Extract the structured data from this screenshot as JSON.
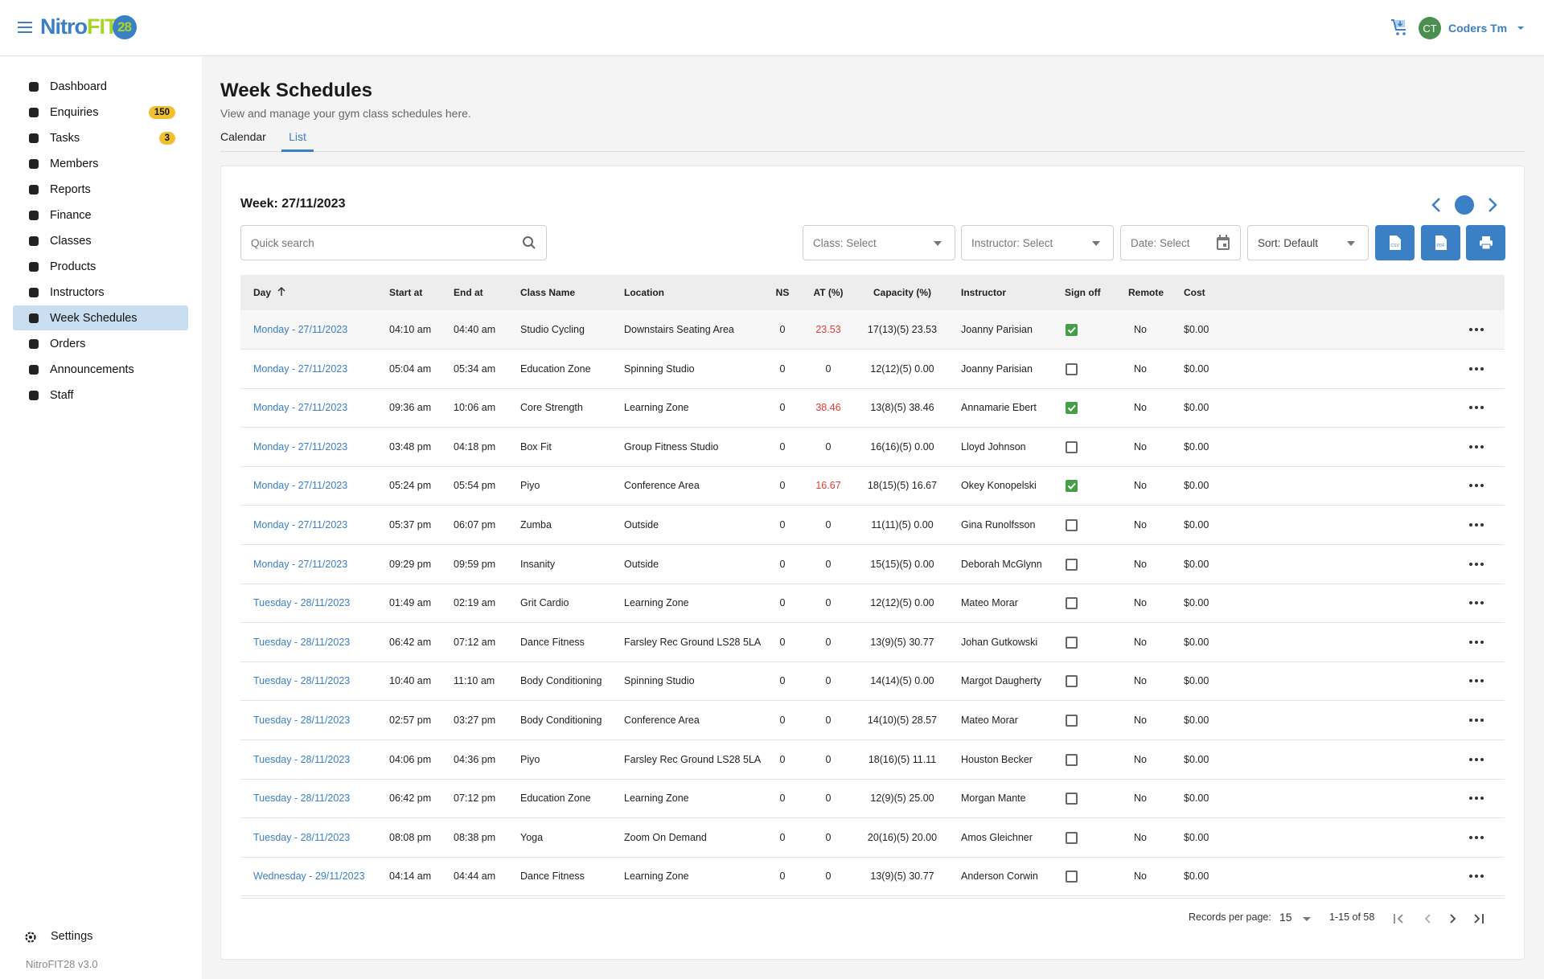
{
  "brand": {
    "logo_text_a": "Nitro",
    "logo_text_b": "FIT",
    "logo_text_c": "28",
    "accent": "#3b7fc4",
    "lime": "#a8d52a"
  },
  "user": {
    "initials": "CT",
    "name": "Coders Tm",
    "avatar_color": "#4a8f4f"
  },
  "sidebar": {
    "items": [
      {
        "label": "Dashboard",
        "icon": "dashboard-icon"
      },
      {
        "label": "Enquiries",
        "icon": "enquiries-icon",
        "badge": "150"
      },
      {
        "label": "Tasks",
        "icon": "tasks-icon",
        "badge": "3"
      },
      {
        "label": "Members",
        "icon": "members-icon"
      },
      {
        "label": "Reports",
        "icon": "reports-icon"
      },
      {
        "label": "Finance",
        "icon": "finance-icon"
      },
      {
        "label": "Classes",
        "icon": "classes-icon"
      },
      {
        "label": "Products",
        "icon": "products-icon"
      },
      {
        "label": "Instructors",
        "icon": "instructors-icon"
      },
      {
        "label": "Week Schedules",
        "icon": "calendar-icon",
        "active": true
      },
      {
        "label": "Orders",
        "icon": "cart-icon"
      },
      {
        "label": "Announcements",
        "icon": "megaphone-icon"
      },
      {
        "label": "Staff",
        "icon": "staff-icon"
      }
    ],
    "settings": "Settings",
    "version": "NitroFIT28 v3.0"
  },
  "page": {
    "title": "Week Schedules",
    "subtitle": "View and manage your gym class schedules here.",
    "tabs": [
      {
        "label": "Calendar"
      },
      {
        "label": "List",
        "active": true
      }
    ]
  },
  "toolbar": {
    "week": "Week: 27/11/2023",
    "search_placeholder": "Quick search",
    "class": "Class: Select",
    "instructor": "Instructor: Select",
    "date": "Date: Select",
    "sort": "Sort: Default",
    "csv_icon": "csv-file-icon",
    "pdf_icon": "pdf-file-icon",
    "print_icon": "print-icon"
  },
  "table": {
    "headers": [
      "Day",
      "Start at",
      "End at",
      "Class Name",
      "Location",
      "NS",
      "AT (%)",
      "Capacity (%)",
      "Instructor",
      "Sign off",
      "Remote",
      "Cost"
    ],
    "rows": [
      {
        "day": "Monday - 27/11/2023",
        "start": "04:10 am",
        "end": "04:40 am",
        "cls": "Studio Cycling",
        "loc": "Downstairs Seating Area",
        "ns": "0",
        "at": "23.53",
        "cap": "17(13)(5) 23.53",
        "ins": "Joanny Parisian",
        "signoff": true,
        "remote": "No",
        "cost": "$0.00"
      },
      {
        "day": "Monday - 27/11/2023",
        "start": "05:04 am",
        "end": "05:34 am",
        "cls": "Education Zone",
        "loc": "Spinning Studio",
        "ns": "0",
        "at": "0",
        "cap": "12(12)(5) 0.00",
        "ins": "Joanny Parisian",
        "signoff": false,
        "remote": "No",
        "cost": "$0.00"
      },
      {
        "day": "Monday - 27/11/2023",
        "start": "09:36 am",
        "end": "10:06 am",
        "cls": "Core Strength",
        "loc": "Learning Zone",
        "ns": "0",
        "at": "38.46",
        "cap": "13(8)(5) 38.46",
        "ins": "Annamarie Ebert",
        "signoff": true,
        "remote": "No",
        "cost": "$0.00"
      },
      {
        "day": "Monday - 27/11/2023",
        "start": "03:48 pm",
        "end": "04:18 pm",
        "cls": "Box Fit",
        "loc": "Group Fitness Studio",
        "ns": "0",
        "at": "0",
        "cap": "16(16)(5) 0.00",
        "ins": "Lloyd Johnson",
        "signoff": false,
        "remote": "No",
        "cost": "$0.00"
      },
      {
        "day": "Monday - 27/11/2023",
        "start": "05:24 pm",
        "end": "05:54 pm",
        "cls": "Piyo",
        "loc": "Conference Area",
        "ns": "0",
        "at": "16.67",
        "cap": "18(15)(5) 16.67",
        "ins": "Okey Konopelski",
        "signoff": true,
        "remote": "No",
        "cost": "$0.00"
      },
      {
        "day": "Monday - 27/11/2023",
        "start": "05:37 pm",
        "end": "06:07 pm",
        "cls": "Zumba",
        "loc": "Outside",
        "ns": "0",
        "at": "0",
        "cap": "11(11)(5) 0.00",
        "ins": "Gina Runolfsson",
        "signoff": false,
        "remote": "No",
        "cost": "$0.00"
      },
      {
        "day": "Monday - 27/11/2023",
        "start": "09:29 pm",
        "end": "09:59 pm",
        "cls": "Insanity",
        "loc": "Outside",
        "ns": "0",
        "at": "0",
        "cap": "15(15)(5) 0.00",
        "ins": "Deborah McGlynn",
        "signoff": false,
        "remote": "No",
        "cost": "$0.00"
      },
      {
        "day": "Tuesday - 28/11/2023",
        "start": "01:49 am",
        "end": "02:19 am",
        "cls": "Grit Cardio",
        "loc": "Learning Zone",
        "ns": "0",
        "at": "0",
        "cap": "12(12)(5) 0.00",
        "ins": "Mateo Morar",
        "signoff": false,
        "remote": "No",
        "cost": "$0.00"
      },
      {
        "day": "Tuesday - 28/11/2023",
        "start": "06:42 am",
        "end": "07:12 am",
        "cls": "Dance Fitness",
        "loc": "Farsley Rec Ground LS28 5LA",
        "ns": "0",
        "at": "0",
        "cap": "13(9)(5) 30.77",
        "ins": "Johan Gutkowski",
        "signoff": false,
        "remote": "No",
        "cost": "$0.00"
      },
      {
        "day": "Tuesday - 28/11/2023",
        "start": "10:40 am",
        "end": "11:10 am",
        "cls": "Body Conditioning",
        "loc": "Spinning Studio",
        "ns": "0",
        "at": "0",
        "cap": "14(14)(5) 0.00",
        "ins": "Margot Daugherty",
        "signoff": false,
        "remote": "No",
        "cost": "$0.00"
      },
      {
        "day": "Tuesday - 28/11/2023",
        "start": "02:57 pm",
        "end": "03:27 pm",
        "cls": "Body Conditioning",
        "loc": "Conference Area",
        "ns": "0",
        "at": "0",
        "cap": "14(10)(5) 28.57",
        "ins": "Mateo Morar",
        "signoff": false,
        "remote": "No",
        "cost": "$0.00"
      },
      {
        "day": "Tuesday - 28/11/2023",
        "start": "04:06 pm",
        "end": "04:36 pm",
        "cls": "Piyo",
        "loc": "Farsley Rec Ground LS28 5LA",
        "ns": "0",
        "at": "0",
        "cap": "18(16)(5) 11.11",
        "ins": "Houston Becker",
        "signoff": false,
        "remote": "No",
        "cost": "$0.00"
      },
      {
        "day": "Tuesday - 28/11/2023",
        "start": "06:42 pm",
        "end": "07:12 pm",
        "cls": "Education Zone",
        "loc": "Learning Zone",
        "ns": "0",
        "at": "0",
        "cap": "12(9)(5) 25.00",
        "ins": "Morgan Mante",
        "signoff": false,
        "remote": "No",
        "cost": "$0.00"
      },
      {
        "day": "Tuesday - 28/11/2023",
        "start": "08:08 pm",
        "end": "08:38 pm",
        "cls": "Yoga",
        "loc": "Zoom On Demand",
        "ns": "0",
        "at": "0",
        "cap": "20(16)(5) 20.00",
        "ins": "Amos Gleichner",
        "signoff": false,
        "remote": "No",
        "cost": "$0.00"
      },
      {
        "day": "Wednesday - 29/11/2023",
        "start": "04:14 am",
        "end": "04:44 am",
        "cls": "Dance Fitness",
        "loc": "Learning Zone",
        "ns": "0",
        "at": "0",
        "cap": "13(9)(5) 30.77",
        "ins": "Anderson Corwin",
        "signoff": false,
        "remote": "No",
        "cost": "$0.00"
      }
    ]
  },
  "pagination": {
    "label": "Records per page:",
    "per_page": "15",
    "range": "1-15 of 58"
  }
}
